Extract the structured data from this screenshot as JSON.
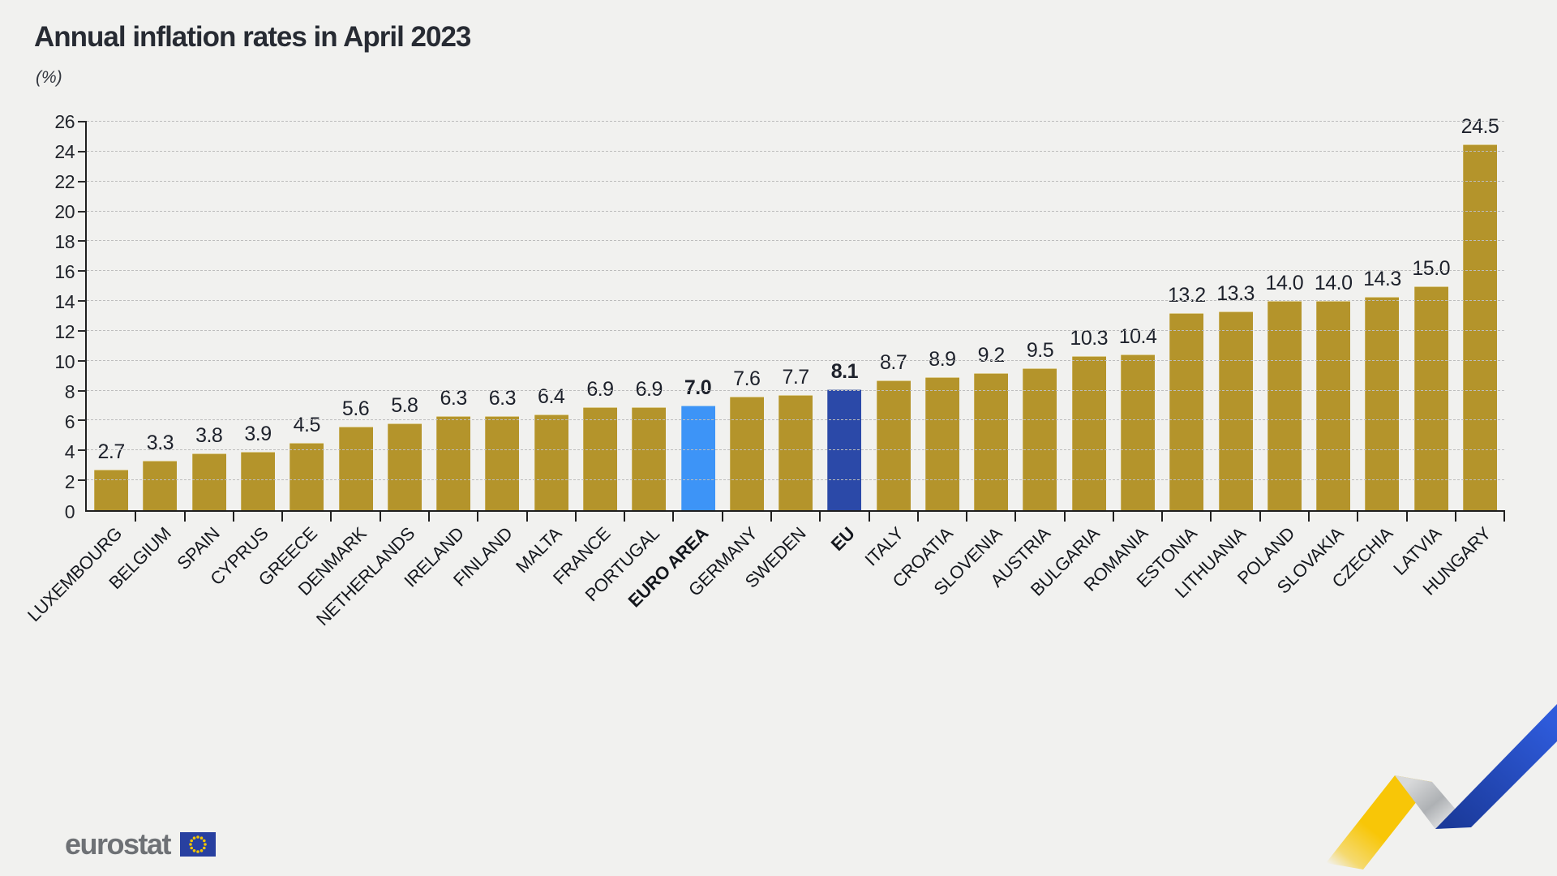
{
  "header": {
    "title": "Annual inflation rates in April 2023",
    "subtitle": "(%)"
  },
  "chart_data": {
    "type": "bar",
    "title": "Annual inflation rates in April 2023",
    "unit_label": "(%)",
    "xlabel": "",
    "ylabel": "(%)",
    "ylim": [
      0,
      26
    ],
    "ytick_step": 2,
    "grid": "horizontal-dashed",
    "legend_position": "none",
    "value_label_format": "one-decimal-above-bar",
    "bars": [
      {
        "label": "LUXEMBOURG",
        "value": 2.7,
        "kind": "member"
      },
      {
        "label": "BELGIUM",
        "value": 3.3,
        "kind": "member"
      },
      {
        "label": "SPAIN",
        "value": 3.8,
        "kind": "member"
      },
      {
        "label": "CYPRUS",
        "value": 3.9,
        "kind": "member"
      },
      {
        "label": "GREECE",
        "value": 4.5,
        "kind": "member"
      },
      {
        "label": "DENMARK",
        "value": 5.6,
        "kind": "member"
      },
      {
        "label": "NETHERLANDS",
        "value": 5.8,
        "kind": "member"
      },
      {
        "label": "IRELAND",
        "value": 6.3,
        "kind": "member"
      },
      {
        "label": "FINLAND",
        "value": 6.3,
        "kind": "member"
      },
      {
        "label": "MALTA",
        "value": 6.4,
        "kind": "member"
      },
      {
        "label": "FRANCE",
        "value": 6.9,
        "kind": "member"
      },
      {
        "label": "PORTUGAL",
        "value": 6.9,
        "kind": "member"
      },
      {
        "label": "EURO AREA",
        "value": 7.0,
        "kind": "euro_area"
      },
      {
        "label": "GERMANY",
        "value": 7.6,
        "kind": "member"
      },
      {
        "label": "SWEDEN",
        "value": 7.7,
        "kind": "member"
      },
      {
        "label": "EU",
        "value": 8.1,
        "kind": "eu"
      },
      {
        "label": "ITALY",
        "value": 8.7,
        "kind": "member"
      },
      {
        "label": "CROATIA",
        "value": 8.9,
        "kind": "member"
      },
      {
        "label": "SLOVENIA",
        "value": 9.2,
        "kind": "member"
      },
      {
        "label": "AUSTRIA",
        "value": 9.5,
        "kind": "member"
      },
      {
        "label": "BULGARIA",
        "value": 10.3,
        "kind": "member"
      },
      {
        "label": "ROMANIA",
        "value": 10.4,
        "kind": "member"
      },
      {
        "label": "ESTONIA",
        "value": 13.2,
        "kind": "member"
      },
      {
        "label": "LITHUANIA",
        "value": 13.3,
        "kind": "member"
      },
      {
        "label": "POLAND",
        "value": 14.0,
        "kind": "member"
      },
      {
        "label": "SLOVAKIA",
        "value": 14.0,
        "kind": "member"
      },
      {
        "label": "CZECHIA",
        "value": 14.3,
        "kind": "member"
      },
      {
        "label": "LATVIA",
        "value": 15.0,
        "kind": "member"
      },
      {
        "label": "HUNGARY",
        "value": 24.5,
        "kind": "member"
      }
    ]
  },
  "colors": {
    "background": "#f1f1ef",
    "bar_member": "#b4942b",
    "bar_euro_area": "#3d94f7",
    "bar_eu": "#2b49a8",
    "axis": "#1f1f1f",
    "gridline": "#bdbdbd",
    "text": "#20242c",
    "logo_gray": "#6e7175",
    "flag_blue": "#2840a0",
    "flag_stars": "#f2c500",
    "ribbon_yellow": "#f8c607",
    "ribbon_gray": "#b9bcbe",
    "ribbon_blue": "#2350c8"
  },
  "footer": {
    "logo_text": "eurostat"
  }
}
